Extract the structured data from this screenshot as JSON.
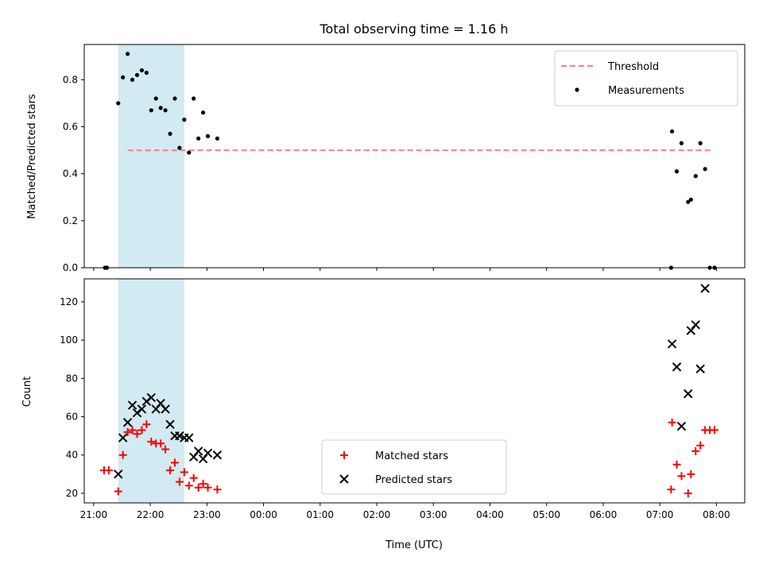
{
  "chart_data": [
    {
      "type": "scatter",
      "title": "Total observing time = 1.16 h",
      "xlabel": "",
      "ylabel": "Matched/Predicted stars",
      "xlim": [
        "20:50",
        "08:30"
      ],
      "ylim": [
        0,
        0.95
      ],
      "yticks": [
        0.0,
        0.2,
        0.4,
        0.6,
        0.8
      ],
      "highlight_span": {
        "start": "21:26",
        "end": "22:36",
        "color": "#add8e6"
      },
      "legend_position": "upper right",
      "series": [
        {
          "name": "Threshold",
          "kind": "line",
          "style": "dashed",
          "color": "#ff7f7f",
          "x": [
            "21:36",
            "07:56"
          ],
          "y": [
            0.5,
            0.5
          ]
        },
        {
          "name": "Measurements",
          "kind": "scatter",
          "color": "#000000",
          "points": [
            [
              "21:12",
              0.0
            ],
            [
              "21:14",
              0.0
            ],
            [
              "21:26",
              0.7
            ],
            [
              "21:31",
              0.81
            ],
            [
              "21:36",
              0.91
            ],
            [
              "21:41",
              0.8
            ],
            [
              "21:46",
              0.82
            ],
            [
              "21:51",
              0.84
            ],
            [
              "21:56",
              0.83
            ],
            [
              "22:01",
              0.67
            ],
            [
              "22:06",
              0.72
            ],
            [
              "22:11",
              0.68
            ],
            [
              "22:16",
              0.67
            ],
            [
              "22:21",
              0.57
            ],
            [
              "22:26",
              0.72
            ],
            [
              "22:31",
              0.51
            ],
            [
              "22:36",
              0.63
            ],
            [
              "22:41",
              0.49
            ],
            [
              "22:46",
              0.72
            ],
            [
              "22:51",
              0.55
            ],
            [
              "22:56",
              0.66
            ],
            [
              "23:01",
              0.56
            ],
            [
              "23:11",
              0.55
            ],
            [
              "07:12",
              0.0
            ],
            [
              "07:13",
              0.58
            ],
            [
              "07:18",
              0.41
            ],
            [
              "07:23",
              0.53
            ],
            [
              "07:30",
              0.28
            ],
            [
              "07:33",
              0.29
            ],
            [
              "07:38",
              0.39
            ],
            [
              "07:43",
              0.53
            ],
            [
              "07:48",
              0.42
            ],
            [
              "07:53",
              0.0
            ],
            [
              "07:58",
              0.0
            ]
          ]
        }
      ]
    },
    {
      "type": "scatter",
      "title": "",
      "xlabel": "Time (UTC)",
      "ylabel": "Count",
      "xlim": [
        "20:50",
        "08:30"
      ],
      "ylim": [
        15,
        132
      ],
      "yticks": [
        20,
        40,
        60,
        80,
        100,
        120
      ],
      "xticks": [
        "21:00",
        "22:00",
        "23:00",
        "00:00",
        "01:00",
        "02:00",
        "03:00",
        "04:00",
        "05:00",
        "06:00",
        "07:00",
        "08:00"
      ],
      "highlight_span": {
        "start": "21:26",
        "end": "22:36",
        "color": "#add8e6"
      },
      "legend_position": "lower center",
      "series": [
        {
          "name": "Matched stars",
          "kind": "scatter",
          "marker": "+",
          "color": "#ff0000",
          "points": [
            [
              "21:11",
              32
            ],
            [
              "21:16",
              32
            ],
            [
              "21:26",
              21
            ],
            [
              "21:31",
              40
            ],
            [
              "21:36",
              52
            ],
            [
              "21:41",
              53
            ],
            [
              "21:46",
              51
            ],
            [
              "21:51",
              53
            ],
            [
              "21:56",
              56
            ],
            [
              "22:01",
              47
            ],
            [
              "22:06",
              46
            ],
            [
              "22:11",
              46
            ],
            [
              "22:16",
              43
            ],
            [
              "22:21",
              32
            ],
            [
              "22:26",
              36
            ],
            [
              "22:31",
              26
            ],
            [
              "22:36",
              31
            ],
            [
              "22:41",
              24
            ],
            [
              "22:46",
              28
            ],
            [
              "22:51",
              23
            ],
            [
              "22:56",
              25
            ],
            [
              "23:01",
              23
            ],
            [
              "23:11",
              22
            ],
            [
              "07:12",
              22
            ],
            [
              "07:13",
              57
            ],
            [
              "07:18",
              35
            ],
            [
              "07:23",
              29
            ],
            [
              "07:30",
              20
            ],
            [
              "07:33",
              30
            ],
            [
              "07:38",
              42
            ],
            [
              "07:43",
              45
            ],
            [
              "07:48",
              53
            ],
            [
              "07:53",
              53
            ],
            [
              "07:58",
              53
            ]
          ]
        },
        {
          "name": "Predicted stars",
          "kind": "scatter",
          "marker": "x",
          "color": "#000000",
          "points": [
            [
              "21:26",
              30
            ],
            [
              "21:31",
              49
            ],
            [
              "21:36",
              57
            ],
            [
              "21:41",
              66
            ],
            [
              "21:46",
              62
            ],
            [
              "21:51",
              64
            ],
            [
              "21:56",
              68
            ],
            [
              "22:01",
              70
            ],
            [
              "22:06",
              64
            ],
            [
              "22:11",
              67
            ],
            [
              "22:16",
              64
            ],
            [
              "22:21",
              56
            ],
            [
              "22:26",
              50
            ],
            [
              "22:31",
              50
            ],
            [
              "22:36",
              49
            ],
            [
              "22:41",
              49
            ],
            [
              "22:46",
              39
            ],
            [
              "22:51",
              42
            ],
            [
              "22:56",
              38
            ],
            [
              "23:01",
              41
            ],
            [
              "23:11",
              40
            ],
            [
              "07:13",
              98
            ],
            [
              "07:18",
              86
            ],
            [
              "07:23",
              55
            ],
            [
              "07:30",
              72
            ],
            [
              "07:33",
              105
            ],
            [
              "07:38",
              108
            ],
            [
              "07:43",
              85
            ],
            [
              "07:48",
              127
            ]
          ]
        }
      ]
    }
  ]
}
